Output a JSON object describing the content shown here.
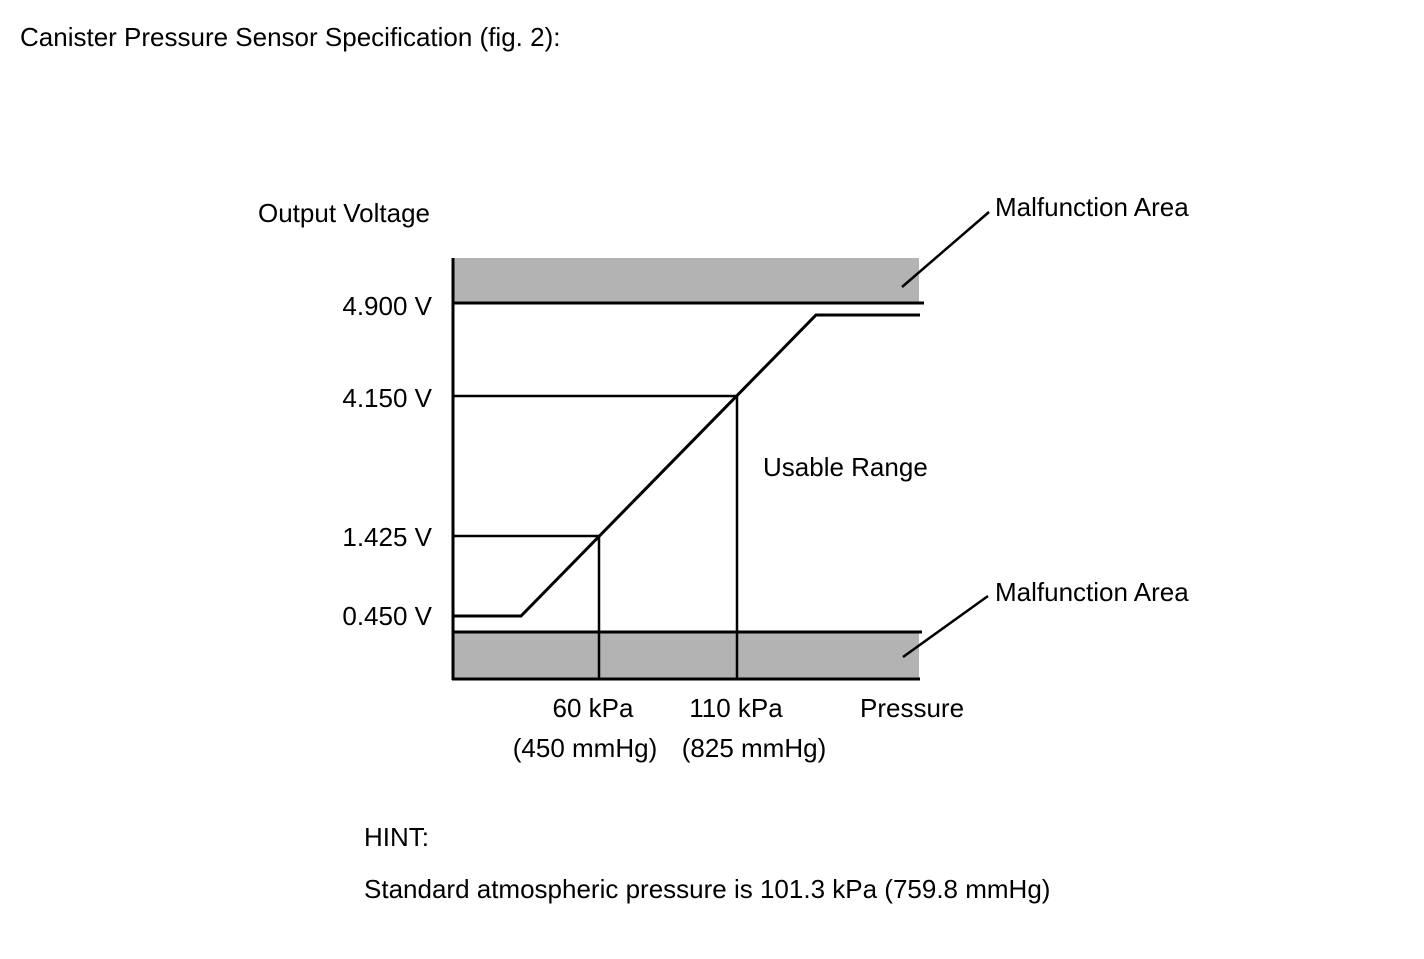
{
  "figure_caption": "Canister Pressure Sensor Specification (fig. 2):",
  "colors": {
    "malfunction_fill": "#b3b3b3",
    "line": "#000000",
    "background": "#ffffff"
  },
  "y_axis_label": "Output Voltage",
  "x_axis_label": "Pressure",
  "region_labels": {
    "upper_malfunction": "Malfunction Area",
    "lower_malfunction": "Malfunction Area",
    "usable": "Usable Range"
  },
  "voltage_ticks": [
    "4.900 V",
    "4.150 V",
    "1.425 V",
    "0.450 V"
  ],
  "pressure_ticks": [
    {
      "value": "60 kPa",
      "alt": "(450 mmHg)"
    },
    {
      "value": "110 kPa",
      "alt": "(825 mmHg)"
    }
  ],
  "hint": {
    "title": "HINT:",
    "text": "Standard atmospheric pressure is 101.3 kPa (759.8 mmHg)"
  }
}
